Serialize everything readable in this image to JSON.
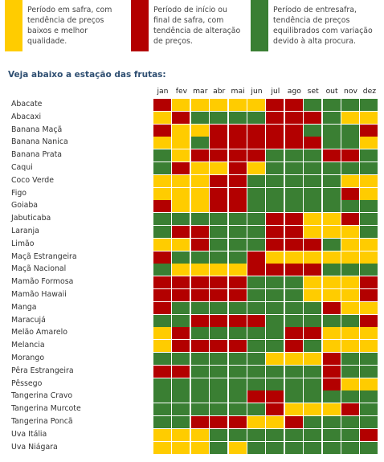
{
  "colors": {
    "yellow": "#ffcc00",
    "red": "#b30000",
    "green": "#3a7f33",
    "title": "#2f4f72"
  },
  "legend": [
    {
      "color_key": "yellow",
      "text": "Período em safra, com\ntendência de preços\nbaixos e melhor\nqualidade."
    },
    {
      "color_key": "red",
      "text": "Período de início ou\nfinal de safra, com\ntendência de alteração\nde preços."
    },
    {
      "color_key": "green",
      "text": "Período de entresafra,\ntendência de preços\nequilibrados com variação\ndevido à alta procura."
    }
  ],
  "section_title": "Veja abaixo a estação das frutas:",
  "months": [
    "jan",
    "fev",
    "mar",
    "abr",
    "mai",
    "jun",
    "jul",
    "ago",
    "set",
    "out",
    "nov",
    "dez"
  ],
  "fruits": [
    {
      "name": "Abacate",
      "months": [
        "R",
        "Y",
        "Y",
        "Y",
        "Y",
        "Y",
        "R",
        "R",
        "G",
        "G",
        "G",
        "G"
      ]
    },
    {
      "name": "Abacaxi",
      "months": [
        "Y",
        "R",
        "G",
        "G",
        "G",
        "G",
        "R",
        "R",
        "R",
        "G",
        "Y",
        "Y"
      ]
    },
    {
      "name": "Banana Maçã",
      "months": [
        "R",
        "Y",
        "Y",
        "R",
        "R",
        "R",
        "R",
        "R",
        "G",
        "G",
        "G",
        "R"
      ]
    },
    {
      "name": "Banana Nanica",
      "months": [
        "Y",
        "Y",
        "G",
        "R",
        "R",
        "R",
        "R",
        "R",
        "R",
        "G",
        "G",
        "Y"
      ]
    },
    {
      "name": "Banana Prata",
      "months": [
        "G",
        "Y",
        "R",
        "R",
        "R",
        "R",
        "G",
        "G",
        "G",
        "R",
        "R",
        "G"
      ]
    },
    {
      "name": "Caqui",
      "months": [
        "G",
        "R",
        "Y",
        "Y",
        "R",
        "Y",
        "G",
        "G",
        "G",
        "G",
        "G",
        "G"
      ]
    },
    {
      "name": "Coco Verde",
      "months": [
        "Y",
        "Y",
        "Y",
        "R",
        "R",
        "G",
        "G",
        "G",
        "G",
        "G",
        "Y",
        "Y"
      ]
    },
    {
      "name": "Figo",
      "months": [
        "Y",
        "Y",
        "Y",
        "R",
        "R",
        "G",
        "G",
        "G",
        "G",
        "G",
        "R",
        "Y"
      ]
    },
    {
      "name": "Goiaba",
      "months": [
        "R",
        "Y",
        "Y",
        "R",
        "R",
        "G",
        "G",
        "G",
        "G",
        "G",
        "G",
        "G"
      ]
    },
    {
      "name": "Jabuticaba",
      "months": [
        "G",
        "G",
        "G",
        "G",
        "G",
        "G",
        "R",
        "R",
        "Y",
        "Y",
        "R",
        "G"
      ]
    },
    {
      "name": "Laranja",
      "months": [
        "G",
        "R",
        "R",
        "G",
        "G",
        "G",
        "R",
        "R",
        "Y",
        "Y",
        "Y",
        "G"
      ]
    },
    {
      "name": "Limão",
      "months": [
        "Y",
        "Y",
        "R",
        "G",
        "G",
        "G",
        "R",
        "R",
        "R",
        "G",
        "Y",
        "Y"
      ]
    },
    {
      "name": "Maçã Estrangeira",
      "months": [
        "R",
        "G",
        "G",
        "G",
        "G",
        "R",
        "Y",
        "Y",
        "Y",
        "Y",
        "Y",
        "Y"
      ]
    },
    {
      "name": "Maçã Nacional",
      "months": [
        "G",
        "Y",
        "Y",
        "Y",
        "Y",
        "R",
        "R",
        "R",
        "R",
        "G",
        "G",
        "G"
      ]
    },
    {
      "name": "Mamão Formosa",
      "months": [
        "R",
        "R",
        "R",
        "R",
        "R",
        "G",
        "G",
        "G",
        "Y",
        "Y",
        "Y",
        "R"
      ]
    },
    {
      "name": "Mamão Hawaii",
      "months": [
        "R",
        "R",
        "R",
        "R",
        "R",
        "G",
        "G",
        "G",
        "Y",
        "Y",
        "Y",
        "R"
      ]
    },
    {
      "name": "Manga",
      "months": [
        "R",
        "G",
        "G",
        "G",
        "G",
        "G",
        "G",
        "G",
        "G",
        "R",
        "Y",
        "Y"
      ]
    },
    {
      "name": "Maracujá",
      "months": [
        "G",
        "G",
        "R",
        "R",
        "R",
        "R",
        "G",
        "G",
        "G",
        "G",
        "G",
        "R"
      ]
    },
    {
      "name": "Melão Amarelo",
      "months": [
        "Y",
        "R",
        "G",
        "G",
        "G",
        "G",
        "G",
        "R",
        "R",
        "Y",
        "Y",
        "Y"
      ]
    },
    {
      "name": "Melancia",
      "months": [
        "Y",
        "R",
        "R",
        "R",
        "R",
        "G",
        "G",
        "R",
        "G",
        "Y",
        "Y",
        "Y"
      ]
    },
    {
      "name": "Morango",
      "months": [
        "G",
        "G",
        "G",
        "G",
        "G",
        "G",
        "Y",
        "Y",
        "Y",
        "R",
        "G",
        "G"
      ]
    },
    {
      "name": "Pêra Estrangeira",
      "months": [
        "R",
        "R",
        "G",
        "G",
        "G",
        "G",
        "G",
        "G",
        "G",
        "R",
        "G",
        "G"
      ]
    },
    {
      "name": "Pêssego",
      "months": [
        "G",
        "G",
        "G",
        "G",
        "G",
        "G",
        "G",
        "G",
        "G",
        "R",
        "Y",
        "Y"
      ]
    },
    {
      "name": "Tangerina Cravo",
      "months": [
        "G",
        "G",
        "G",
        "G",
        "G",
        "R",
        "R",
        "G",
        "G",
        "G",
        "G",
        "G"
      ]
    },
    {
      "name": "Tangerina Murcote",
      "months": [
        "G",
        "G",
        "G",
        "G",
        "G",
        "G",
        "R",
        "Y",
        "Y",
        "Y",
        "R",
        "G"
      ]
    },
    {
      "name": "Tangerina Poncã",
      "months": [
        "G",
        "G",
        "R",
        "R",
        "R",
        "Y",
        "Y",
        "R",
        "G",
        "G",
        "G",
        "G"
      ]
    },
    {
      "name": "Uva Itália",
      "months": [
        "Y",
        "Y",
        "Y",
        "G",
        "G",
        "G",
        "G",
        "G",
        "G",
        "G",
        "G",
        "R"
      ]
    },
    {
      "name": "Uva Niágara",
      "months": [
        "Y",
        "Y",
        "Y",
        "G",
        "Y",
        "G",
        "G",
        "G",
        "G",
        "G",
        "G",
        "G"
      ]
    }
  ]
}
